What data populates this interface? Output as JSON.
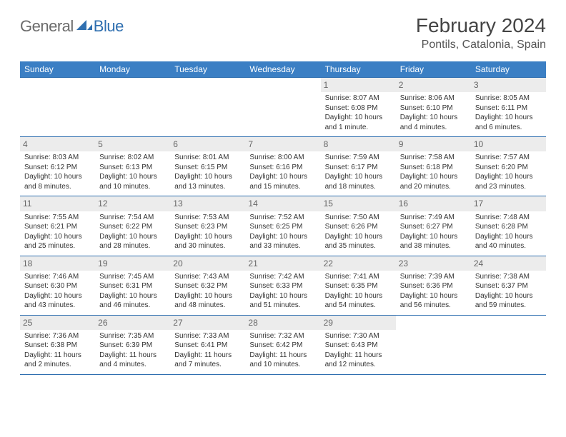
{
  "logo": {
    "general": "General",
    "blue": "Blue"
  },
  "title": "February 2024",
  "location": "Pontils, Catalonia, Spain",
  "colors": {
    "header_bg": "#3b7fc4",
    "border": "#2f6fb0",
    "day_bg": "#ececec",
    "text": "#333333"
  },
  "weekdays": [
    "Sunday",
    "Monday",
    "Tuesday",
    "Wednesday",
    "Thursday",
    "Friday",
    "Saturday"
  ],
  "weeks": [
    [
      null,
      null,
      null,
      null,
      {
        "n": "1",
        "sr": "Sunrise: 8:07 AM",
        "ss": "Sunset: 6:08 PM",
        "dl": "Daylight: 10 hours and 1 minute."
      },
      {
        "n": "2",
        "sr": "Sunrise: 8:06 AM",
        "ss": "Sunset: 6:10 PM",
        "dl": "Daylight: 10 hours and 4 minutes."
      },
      {
        "n": "3",
        "sr": "Sunrise: 8:05 AM",
        "ss": "Sunset: 6:11 PM",
        "dl": "Daylight: 10 hours and 6 minutes."
      }
    ],
    [
      {
        "n": "4",
        "sr": "Sunrise: 8:03 AM",
        "ss": "Sunset: 6:12 PM",
        "dl": "Daylight: 10 hours and 8 minutes."
      },
      {
        "n": "5",
        "sr": "Sunrise: 8:02 AM",
        "ss": "Sunset: 6:13 PM",
        "dl": "Daylight: 10 hours and 10 minutes."
      },
      {
        "n": "6",
        "sr": "Sunrise: 8:01 AM",
        "ss": "Sunset: 6:15 PM",
        "dl": "Daylight: 10 hours and 13 minutes."
      },
      {
        "n": "7",
        "sr": "Sunrise: 8:00 AM",
        "ss": "Sunset: 6:16 PM",
        "dl": "Daylight: 10 hours and 15 minutes."
      },
      {
        "n": "8",
        "sr": "Sunrise: 7:59 AM",
        "ss": "Sunset: 6:17 PM",
        "dl": "Daylight: 10 hours and 18 minutes."
      },
      {
        "n": "9",
        "sr": "Sunrise: 7:58 AM",
        "ss": "Sunset: 6:18 PM",
        "dl": "Daylight: 10 hours and 20 minutes."
      },
      {
        "n": "10",
        "sr": "Sunrise: 7:57 AM",
        "ss": "Sunset: 6:20 PM",
        "dl": "Daylight: 10 hours and 23 minutes."
      }
    ],
    [
      {
        "n": "11",
        "sr": "Sunrise: 7:55 AM",
        "ss": "Sunset: 6:21 PM",
        "dl": "Daylight: 10 hours and 25 minutes."
      },
      {
        "n": "12",
        "sr": "Sunrise: 7:54 AM",
        "ss": "Sunset: 6:22 PM",
        "dl": "Daylight: 10 hours and 28 minutes."
      },
      {
        "n": "13",
        "sr": "Sunrise: 7:53 AM",
        "ss": "Sunset: 6:23 PM",
        "dl": "Daylight: 10 hours and 30 minutes."
      },
      {
        "n": "14",
        "sr": "Sunrise: 7:52 AM",
        "ss": "Sunset: 6:25 PM",
        "dl": "Daylight: 10 hours and 33 minutes."
      },
      {
        "n": "15",
        "sr": "Sunrise: 7:50 AM",
        "ss": "Sunset: 6:26 PM",
        "dl": "Daylight: 10 hours and 35 minutes."
      },
      {
        "n": "16",
        "sr": "Sunrise: 7:49 AM",
        "ss": "Sunset: 6:27 PM",
        "dl": "Daylight: 10 hours and 38 minutes."
      },
      {
        "n": "17",
        "sr": "Sunrise: 7:48 AM",
        "ss": "Sunset: 6:28 PM",
        "dl": "Daylight: 10 hours and 40 minutes."
      }
    ],
    [
      {
        "n": "18",
        "sr": "Sunrise: 7:46 AM",
        "ss": "Sunset: 6:30 PM",
        "dl": "Daylight: 10 hours and 43 minutes."
      },
      {
        "n": "19",
        "sr": "Sunrise: 7:45 AM",
        "ss": "Sunset: 6:31 PM",
        "dl": "Daylight: 10 hours and 46 minutes."
      },
      {
        "n": "20",
        "sr": "Sunrise: 7:43 AM",
        "ss": "Sunset: 6:32 PM",
        "dl": "Daylight: 10 hours and 48 minutes."
      },
      {
        "n": "21",
        "sr": "Sunrise: 7:42 AM",
        "ss": "Sunset: 6:33 PM",
        "dl": "Daylight: 10 hours and 51 minutes."
      },
      {
        "n": "22",
        "sr": "Sunrise: 7:41 AM",
        "ss": "Sunset: 6:35 PM",
        "dl": "Daylight: 10 hours and 54 minutes."
      },
      {
        "n": "23",
        "sr": "Sunrise: 7:39 AM",
        "ss": "Sunset: 6:36 PM",
        "dl": "Daylight: 10 hours and 56 minutes."
      },
      {
        "n": "24",
        "sr": "Sunrise: 7:38 AM",
        "ss": "Sunset: 6:37 PM",
        "dl": "Daylight: 10 hours and 59 minutes."
      }
    ],
    [
      {
        "n": "25",
        "sr": "Sunrise: 7:36 AM",
        "ss": "Sunset: 6:38 PM",
        "dl": "Daylight: 11 hours and 2 minutes."
      },
      {
        "n": "26",
        "sr": "Sunrise: 7:35 AM",
        "ss": "Sunset: 6:39 PM",
        "dl": "Daylight: 11 hours and 4 minutes."
      },
      {
        "n": "27",
        "sr": "Sunrise: 7:33 AM",
        "ss": "Sunset: 6:41 PM",
        "dl": "Daylight: 11 hours and 7 minutes."
      },
      {
        "n": "28",
        "sr": "Sunrise: 7:32 AM",
        "ss": "Sunset: 6:42 PM",
        "dl": "Daylight: 11 hours and 10 minutes."
      },
      {
        "n": "29",
        "sr": "Sunrise: 7:30 AM",
        "ss": "Sunset: 6:43 PM",
        "dl": "Daylight: 11 hours and 12 minutes."
      },
      null,
      null
    ]
  ]
}
